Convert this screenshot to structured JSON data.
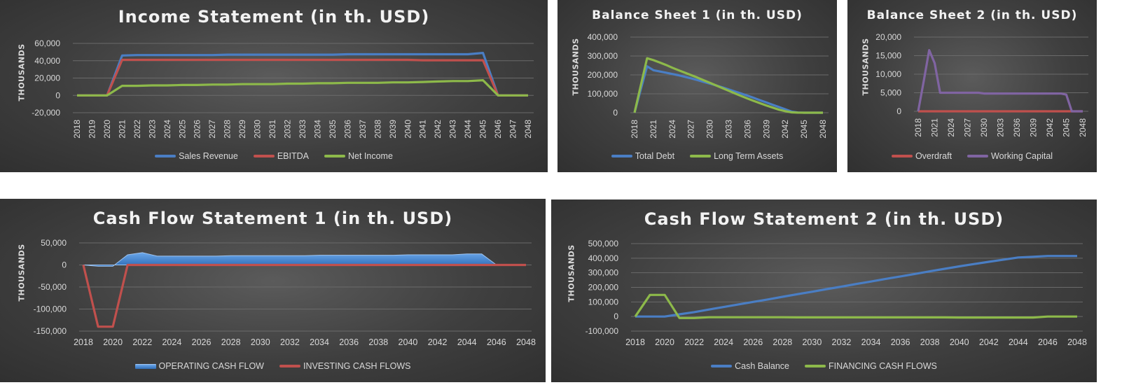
{
  "chart_data": [
    {
      "id": "income",
      "type": "line",
      "title": "Income Statement (in th. USD)",
      "ylabel": "THOUSANDS",
      "xlabel": "",
      "ylim": [
        -20000,
        60000
      ],
      "yticks": [
        -20000,
        0,
        20000,
        40000,
        60000
      ],
      "tick_labels_y": [
        "-20,000",
        "0",
        "20,000",
        "40,000",
        "60,000"
      ],
      "x": [
        2018,
        2019,
        2020,
        2021,
        2022,
        2023,
        2024,
        2025,
        2026,
        2027,
        2028,
        2029,
        2030,
        2031,
        2032,
        2033,
        2034,
        2035,
        2036,
        2037,
        2038,
        2039,
        2040,
        2041,
        2042,
        2043,
        2044,
        2045,
        2046,
        2047,
        2048
      ],
      "xticks": [
        2018,
        2019,
        2020,
        2021,
        2022,
        2023,
        2024,
        2025,
        2026,
        2027,
        2028,
        2029,
        2030,
        2031,
        2032,
        2033,
        2034,
        2035,
        2036,
        2037,
        2038,
        2039,
        2040,
        2041,
        2042,
        2043,
        2044,
        2045,
        2046,
        2047,
        2048
      ],
      "xtick_rotate": true,
      "grid": true,
      "legend": "bottom",
      "series": [
        {
          "name": "Sales Revenue",
          "color": "#4a7ec4",
          "values": [
            0,
            0,
            0,
            46000,
            46500,
            46500,
            46500,
            46500,
            46500,
            46500,
            47000,
            47000,
            47000,
            47000,
            47000,
            47000,
            47000,
            47000,
            47500,
            47500,
            47500,
            47500,
            47500,
            47500,
            47500,
            47500,
            47500,
            49000,
            0,
            0,
            0
          ]
        },
        {
          "name": "EBITDA",
          "color": "#c0504d",
          "values": [
            0,
            0,
            0,
            41000,
            41000,
            41000,
            41000,
            41000,
            41000,
            41000,
            41000,
            41000,
            41000,
            41000,
            41000,
            41000,
            41000,
            41000,
            41000,
            41000,
            41000,
            41000,
            41000,
            40500,
            40500,
            40500,
            40500,
            40500,
            0,
            0,
            0
          ]
        },
        {
          "name": "Net Income",
          "color": "#8db94a",
          "values": [
            0,
            0,
            0,
            11000,
            11000,
            11500,
            11500,
            12000,
            12000,
            12500,
            12500,
            13000,
            13000,
            13000,
            13500,
            13500,
            14000,
            14000,
            14500,
            14500,
            14500,
            15000,
            15000,
            15500,
            16000,
            16500,
            16500,
            17500,
            0,
            0,
            0
          ]
        }
      ]
    },
    {
      "id": "bs1",
      "type": "line",
      "title": "Balance Sheet 1 (in th. USD)",
      "ylabel": "THOUSANDS",
      "xlabel": "",
      "ylim": [
        0,
        400000
      ],
      "yticks": [
        0,
        100000,
        200000,
        300000,
        400000
      ],
      "tick_labels_y": [
        "0",
        "100,000",
        "200,000",
        "300,000",
        "400,000"
      ],
      "x": [
        2018,
        2019,
        2020,
        2021,
        2022,
        2023,
        2024,
        2025,
        2026,
        2027,
        2028,
        2029,
        2030,
        2031,
        2032,
        2033,
        2034,
        2035,
        2036,
        2037,
        2038,
        2039,
        2040,
        2041,
        2042,
        2043,
        2044,
        2045,
        2046,
        2047,
        2048
      ],
      "xticks": [
        2018,
        2021,
        2024,
        2027,
        2030,
        2033,
        2036,
        2039,
        2042,
        2045,
        2048
      ],
      "xtick_rotate": true,
      "grid": true,
      "legend": "bottom",
      "series": [
        {
          "name": "Total Debt",
          "color": "#4a7ec4",
          "values": [
            0,
            125000,
            245000,
            225000,
            218000,
            212000,
            205000,
            198000,
            190000,
            182000,
            173000,
            163000,
            154000,
            144000,
            134000,
            123000,
            112000,
            101000,
            90000,
            78000,
            66000,
            54000,
            42000,
            30000,
            18000,
            6000,
            1000,
            0,
            0,
            0,
            0
          ]
        },
        {
          "name": "Long Term Assets",
          "color": "#8db94a",
          "values": [
            0,
            145000,
            288000,
            278000,
            266000,
            253000,
            238000,
            225000,
            212000,
            199000,
            186000,
            172000,
            158000,
            144000,
            130000,
            116000,
            102000,
            88000,
            75000,
            62000,
            50000,
            38000,
            27000,
            16000,
            8000,
            2000,
            500,
            0,
            0,
            0,
            0
          ]
        }
      ]
    },
    {
      "id": "bs2",
      "type": "line",
      "title": "Balance Sheet 2 (in th. USD)",
      "ylabel": "THOUSANDS",
      "xlabel": "",
      "ylim": [
        0,
        20000
      ],
      "yticks": [
        0,
        5000,
        10000,
        15000,
        20000
      ],
      "tick_labels_y": [
        "0",
        "5,000",
        "10,000",
        "15,000",
        "20,000"
      ],
      "x": [
        2018,
        2019,
        2020,
        2021,
        2022,
        2023,
        2024,
        2025,
        2026,
        2027,
        2028,
        2029,
        2030,
        2031,
        2032,
        2033,
        2034,
        2035,
        2036,
        2037,
        2038,
        2039,
        2040,
        2041,
        2042,
        2043,
        2044,
        2045,
        2046,
        2047,
        2048
      ],
      "xticks": [
        2018,
        2021,
        2024,
        2027,
        2030,
        2033,
        2036,
        2039,
        2042,
        2045,
        2048
      ],
      "xtick_rotate": true,
      "grid": true,
      "legend": "bottom",
      "series": [
        {
          "name": "Overdraft",
          "color": "#c0504d",
          "values": [
            0,
            0,
            0,
            0,
            0,
            0,
            0,
            0,
            0,
            0,
            0,
            0,
            0,
            0,
            0,
            0,
            0,
            0,
            0,
            0,
            0,
            0,
            0,
            0,
            0,
            0,
            0,
            0,
            0,
            0,
            0
          ]
        },
        {
          "name": "Working Capital",
          "color": "#8064a2",
          "values": [
            0,
            8000,
            16500,
            13000,
            5000,
            5000,
            5000,
            5000,
            5000,
            5000,
            5000,
            5000,
            4800,
            4800,
            4800,
            4800,
            4800,
            4800,
            4800,
            4800,
            4800,
            4800,
            4800,
            4800,
            4800,
            4800,
            4800,
            4500,
            0,
            0,
            0
          ]
        }
      ]
    },
    {
      "id": "cf1",
      "type": "area",
      "title": "Cash Flow Statement 1 (in th. USD)",
      "ylabel": "THOUSANDS",
      "xlabel": "",
      "ylim": [
        -150000,
        50000
      ],
      "yticks": [
        -150000,
        -100000,
        -50000,
        0,
        50000
      ],
      "tick_labels_y": [
        "-150,000",
        "-100,000",
        "-50,000",
        "0",
        "50,000"
      ],
      "x": [
        2018,
        2019,
        2020,
        2021,
        2022,
        2023,
        2024,
        2025,
        2026,
        2027,
        2028,
        2029,
        2030,
        2031,
        2032,
        2033,
        2034,
        2035,
        2036,
        2037,
        2038,
        2039,
        2040,
        2041,
        2042,
        2043,
        2044,
        2045,
        2046,
        2047,
        2048
      ],
      "xticks": [
        2018,
        2020,
        2022,
        2024,
        2026,
        2028,
        2030,
        2032,
        2034,
        2036,
        2038,
        2040,
        2042,
        2044,
        2046,
        2048
      ],
      "xtick_rotate": false,
      "grid": true,
      "legend": "bottom",
      "series": [
        {
          "name": "OPERATING CASH FLOW",
          "color": "#4a7ec4",
          "style": "area",
          "values": [
            0,
            -3000,
            -3000,
            23000,
            28000,
            20000,
            20000,
            20000,
            20000,
            20000,
            21000,
            21000,
            21000,
            21000,
            21000,
            21000,
            22000,
            22000,
            22000,
            22000,
            22000,
            22000,
            23000,
            23000,
            23000,
            23000,
            25000,
            25000,
            0,
            0,
            0
          ]
        },
        {
          "name": "INVESTING CASH FLOWS",
          "color": "#c0504d",
          "style": "line",
          "values": [
            0,
            -140000,
            -140000,
            0,
            0,
            0,
            0,
            0,
            0,
            0,
            0,
            0,
            0,
            0,
            0,
            0,
            0,
            0,
            0,
            0,
            0,
            0,
            0,
            0,
            0,
            0,
            0,
            0,
            0,
            0,
            0
          ]
        }
      ]
    },
    {
      "id": "cf2",
      "type": "line",
      "title": "Cash Flow Statement 2 (in th. USD)",
      "ylabel": "THOUSANDS",
      "xlabel": "",
      "ylim": [
        -100000,
        500000
      ],
      "yticks": [
        -100000,
        0,
        100000,
        200000,
        300000,
        400000,
        500000
      ],
      "tick_labels_y": [
        "-100,000",
        "0",
        "100,000",
        "200,000",
        "300,000",
        "400,000",
        "500,000"
      ],
      "x": [
        2018,
        2019,
        2020,
        2021,
        2022,
        2023,
        2024,
        2025,
        2026,
        2027,
        2028,
        2029,
        2030,
        2031,
        2032,
        2033,
        2034,
        2035,
        2036,
        2037,
        2038,
        2039,
        2040,
        2041,
        2042,
        2043,
        2044,
        2045,
        2046,
        2047,
        2048
      ],
      "xticks": [
        2018,
        2020,
        2022,
        2024,
        2026,
        2028,
        2030,
        2032,
        2034,
        2036,
        2038,
        2040,
        2042,
        2044,
        2046,
        2048
      ],
      "xtick_rotate": false,
      "grid": true,
      "legend": "bottom",
      "series": [
        {
          "name": "Cash Balance",
          "color": "#4a7ec4",
          "values": [
            0,
            0,
            0,
            15000,
            30000,
            48000,
            65000,
            83000,
            100000,
            117000,
            135000,
            153000,
            170000,
            188000,
            205000,
            223000,
            240000,
            258000,
            275000,
            292000,
            310000,
            327000,
            344000,
            360000,
            375000,
            390000,
            405000,
            410000,
            415000,
            415000,
            415000
          ]
        },
        {
          "name": "FINANCING CASH FLOWS",
          "color": "#8db94a",
          "values": [
            0,
            148000,
            148000,
            -10000,
            -10000,
            -5000,
            -5000,
            -5000,
            -5000,
            -5000,
            -5000,
            -6000,
            -6000,
            -6000,
            -6000,
            -6000,
            -6000,
            -6000,
            -6000,
            -6000,
            -6000,
            -6000,
            -7000,
            -7000,
            -7000,
            -7000,
            -7000,
            -7000,
            0,
            0,
            0
          ]
        }
      ]
    }
  ]
}
